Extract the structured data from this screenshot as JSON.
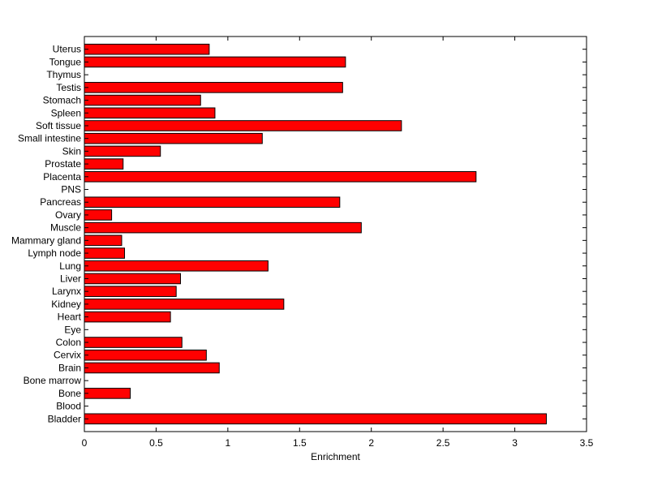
{
  "chart_data": {
    "type": "bar",
    "orientation": "horizontal",
    "title": "",
    "xlabel": "Enrichment",
    "ylabel": "",
    "xlim": [
      0,
      3.5
    ],
    "xticks": [
      0,
      0.5,
      1,
      1.5,
      2,
      2.5,
      3,
      3.5
    ],
    "xtick_labels": [
      "0",
      "0.5",
      "1",
      "1.5",
      "2",
      "2.5",
      "3",
      "3.5"
    ],
    "grid": false,
    "bar_color": "#ff0000",
    "bar_edge_color": "#000000",
    "categories": [
      "Bladder",
      "Blood",
      "Bone",
      "Bone marrow",
      "Brain",
      "Cervix",
      "Colon",
      "Eye",
      "Heart",
      "Kidney",
      "Larynx",
      "Liver",
      "Lung",
      "Lymph node",
      "Mammary gland",
      "Muscle",
      "Ovary",
      "Pancreas",
      "PNS",
      "Placenta",
      "Prostate",
      "Skin",
      "Small intestine",
      "Soft tissue",
      "Spleen",
      "Stomach",
      "Testis",
      "Thymus",
      "Tongue",
      "Uterus"
    ],
    "values": [
      3.22,
      0,
      0.32,
      0,
      0.94,
      0.85,
      0.68,
      0,
      0.6,
      1.39,
      0.64,
      0.67,
      1.28,
      0.28,
      0.26,
      1.93,
      0.19,
      1.78,
      0,
      2.73,
      0.27,
      0.53,
      1.24,
      2.21,
      0.91,
      0.81,
      1.8,
      0,
      1.82,
      0.87
    ]
  }
}
